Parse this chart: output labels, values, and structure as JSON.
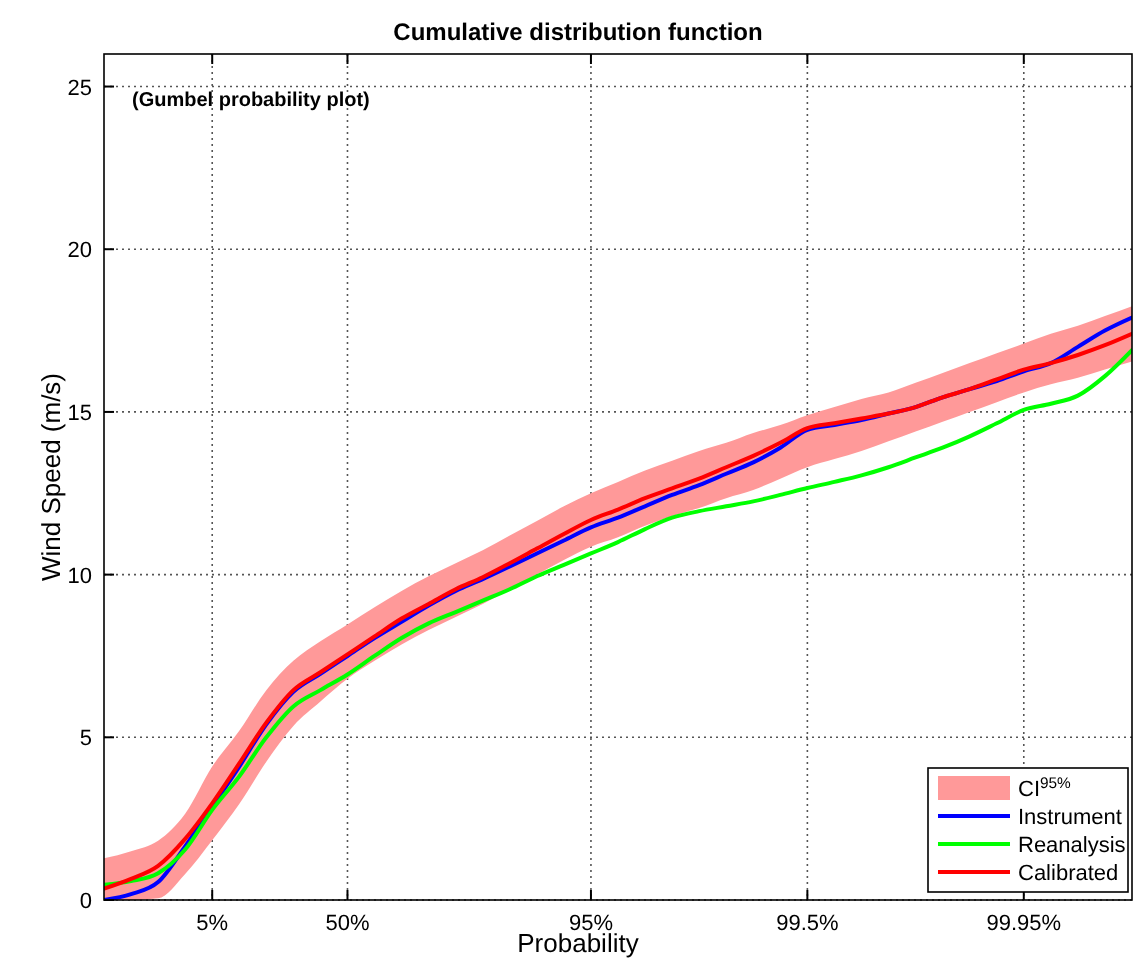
{
  "chart_data": {
    "type": "line",
    "title": "Cumulative distribution function",
    "xlabel": "Probability",
    "ylabel": "Wind Speed (m/s)",
    "annotations": [
      "(Gumbel probability plot)"
    ],
    "categories": [
      null,
      null,
      null,
      null,
      "5%",
      null,
      null,
      null,
      null,
      "50%",
      null,
      null,
      null,
      null,
      null,
      null,
      null,
      null,
      "95%",
      null,
      null,
      null,
      null,
      null,
      null,
      null,
      "99.5%",
      null,
      null,
      null,
      null,
      null,
      null,
      null,
      "99.95%",
      null,
      null,
      null,
      null
    ],
    "ylim": [
      0,
      26
    ],
    "yticks": [
      0,
      5,
      10,
      15,
      20,
      25
    ],
    "grid": true,
    "legend": "bottom right",
    "line_style": "solid",
    "marker": "none",
    "series": [
      {
        "name": "CI$^{95%}$",
        "type": "area",
        "color": "#ff9999",
        "values": [
          null,
          null,
          null,
          null,
          null,
          null,
          null,
          null,
          null,
          null,
          null,
          null,
          null,
          null,
          null,
          null,
          null,
          null,
          null,
          null,
          null,
          null,
          null,
          null,
          null,
          null,
          null,
          null,
          null,
          null,
          null,
          null,
          null,
          null,
          null,
          null,
          null,
          null,
          null
        ],
        "lower": [
          0,
          0,
          0.05,
          0.8,
          1.84,
          2.95,
          4.25,
          5.35,
          6.1,
          6.8,
          7.35,
          7.85,
          8.3,
          8.7,
          9.1,
          9.55,
          10.0,
          10.45,
          10.86,
          11.15,
          11.5,
          11.8,
          12.05,
          12.35,
          12.6,
          12.95,
          13.3,
          13.55,
          13.8,
          14.1,
          14.4,
          14.7,
          15.0,
          15.3,
          15.6,
          15.85,
          16.05,
          16.3,
          16.55
        ],
        "upper": [
          1.28,
          1.5,
          1.82,
          2.65,
          4.1,
          5.2,
          6.45,
          7.35,
          7.95,
          8.47,
          9.0,
          9.5,
          9.95,
          10.35,
          10.75,
          11.2,
          11.65,
          12.1,
          12.5,
          12.85,
          13.2,
          13.5,
          13.8,
          14.05,
          14.35,
          14.6,
          14.9,
          15.15,
          15.4,
          15.6,
          15.9,
          16.2,
          16.5,
          16.8,
          17.1,
          17.4,
          17.65,
          17.95,
          18.25
        ]
      },
      {
        "name": "Instrument",
        "color": "#0000ff",
        "values": [
          0,
          0.18,
          0.55,
          1.65,
          2.87,
          4.1,
          5.4,
          6.4,
          6.95,
          7.5,
          8.05,
          8.55,
          9.05,
          9.5,
          9.86,
          10.25,
          10.65,
          11.05,
          11.45,
          11.75,
          12.1,
          12.45,
          12.75,
          13.1,
          13.45,
          13.9,
          14.45,
          14.6,
          14.75,
          14.95,
          15.15,
          15.45,
          15.7,
          15.95,
          16.25,
          16.5,
          17.0,
          17.5,
          17.9
        ]
      },
      {
        "name": "Reanalysis",
        "color": "#00ff00",
        "values": [
          0.47,
          0.58,
          0.82,
          1.55,
          2.77,
          3.8,
          5.0,
          5.95,
          6.45,
          6.93,
          7.5,
          8.05,
          8.5,
          8.85,
          9.2,
          9.55,
          9.95,
          10.3,
          10.65,
          11.0,
          11.4,
          11.75,
          11.95,
          12.1,
          12.25,
          12.45,
          12.66,
          12.85,
          13.05,
          13.3,
          13.6,
          13.9,
          14.25,
          14.65,
          15.06,
          15.25,
          15.5,
          16.1,
          16.9
        ]
      },
      {
        "name": "Calibrated",
        "color": "#ff0000",
        "values": [
          0.35,
          0.65,
          1.05,
          1.88,
          2.97,
          4.2,
          5.45,
          6.45,
          7.0,
          7.55,
          8.1,
          8.65,
          9.1,
          9.55,
          9.92,
          10.35,
          10.8,
          11.25,
          11.68,
          12.0,
          12.35,
          12.65,
          12.95,
          13.3,
          13.65,
          14.05,
          14.5,
          14.65,
          14.8,
          14.95,
          15.15,
          15.45,
          15.7,
          16.0,
          16.3,
          16.5,
          16.75,
          17.05,
          17.4
        ]
      }
    ]
  }
}
